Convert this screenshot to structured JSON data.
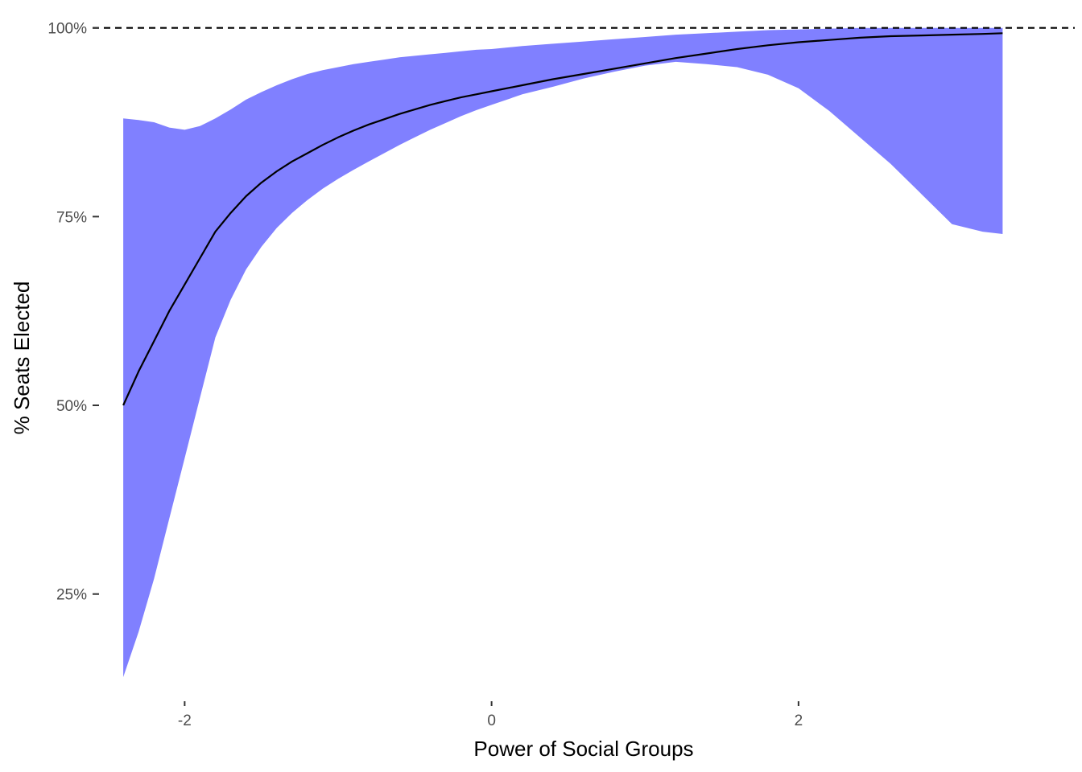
{
  "chart_data": {
    "type": "area",
    "xlabel": "Power of Social Groups",
    "ylabel": "% Seats Elected",
    "xlim": [
      -2.6,
      3.8
    ],
    "ylim": [
      0.108,
      1.005
    ],
    "x_ticks": [
      -2,
      0,
      2
    ],
    "x_tick_labels": [
      "-2",
      "0",
      "2"
    ],
    "y_ticks": [
      0.25,
      0.5,
      0.75,
      1.0
    ],
    "y_tick_labels": [
      "25%",
      "50%",
      "75%",
      "100%"
    ],
    "grid": false,
    "legend": "none",
    "reference_line": {
      "y": 1.0,
      "style": "dashed",
      "color": "#000000"
    },
    "colors": {
      "band": "#8080ff",
      "line": "#000000"
    },
    "series": [
      {
        "x": [
          -2.4,
          -2.3,
          -2.2,
          -2.1,
          -2.0,
          -1.9,
          -1.8,
          -1.7,
          -1.6,
          -1.5,
          -1.4,
          -1.3,
          -1.2,
          -1.1,
          -1.0,
          -0.9,
          -0.8,
          -0.7,
          -0.6,
          -0.5,
          -0.4,
          -0.3,
          -0.2,
          -0.1,
          0.0,
          0.2,
          0.4,
          0.6,
          0.8,
          1.0,
          1.2,
          1.4,
          1.6,
          1.8,
          2.0,
          2.2,
          2.4,
          2.6,
          2.8,
          3.0,
          3.2,
          3.33
        ],
        "y": [
          0.5,
          0.545,
          0.585,
          0.625,
          0.66,
          0.695,
          0.73,
          0.755,
          0.777,
          0.795,
          0.81,
          0.823,
          0.834,
          0.845,
          0.855,
          0.864,
          0.872,
          0.879,
          0.886,
          0.892,
          0.898,
          0.903,
          0.908,
          0.912,
          0.916,
          0.924,
          0.932,
          0.939,
          0.946,
          0.953,
          0.96,
          0.966,
          0.972,
          0.977,
          0.981,
          0.984,
          0.987,
          0.989,
          0.99,
          0.991,
          0.992,
          0.993
        ],
        "lower": [
          0.14,
          0.2,
          0.27,
          0.35,
          0.43,
          0.51,
          0.59,
          0.64,
          0.68,
          0.71,
          0.735,
          0.755,
          0.772,
          0.787,
          0.8,
          0.812,
          0.823,
          0.834,
          0.845,
          0.855,
          0.865,
          0.874,
          0.883,
          0.891,
          0.898,
          0.912,
          0.922,
          0.933,
          0.942,
          0.95,
          0.955,
          0.952,
          0.948,
          0.938,
          0.92,
          0.89,
          0.855,
          0.82,
          0.78,
          0.74,
          0.73,
          0.727
        ],
        "upper": [
          0.88,
          0.878,
          0.875,
          0.868,
          0.865,
          0.87,
          0.88,
          0.892,
          0.905,
          0.915,
          0.924,
          0.932,
          0.939,
          0.944,
          0.948,
          0.952,
          0.955,
          0.958,
          0.961,
          0.963,
          0.965,
          0.967,
          0.969,
          0.971,
          0.972,
          0.976,
          0.979,
          0.982,
          0.985,
          0.988,
          0.991,
          0.993,
          0.995,
          0.997,
          0.998,
          0.999,
          1.0,
          1.0,
          1.0,
          1.0,
          1.0,
          1.0
        ]
      }
    ]
  }
}
